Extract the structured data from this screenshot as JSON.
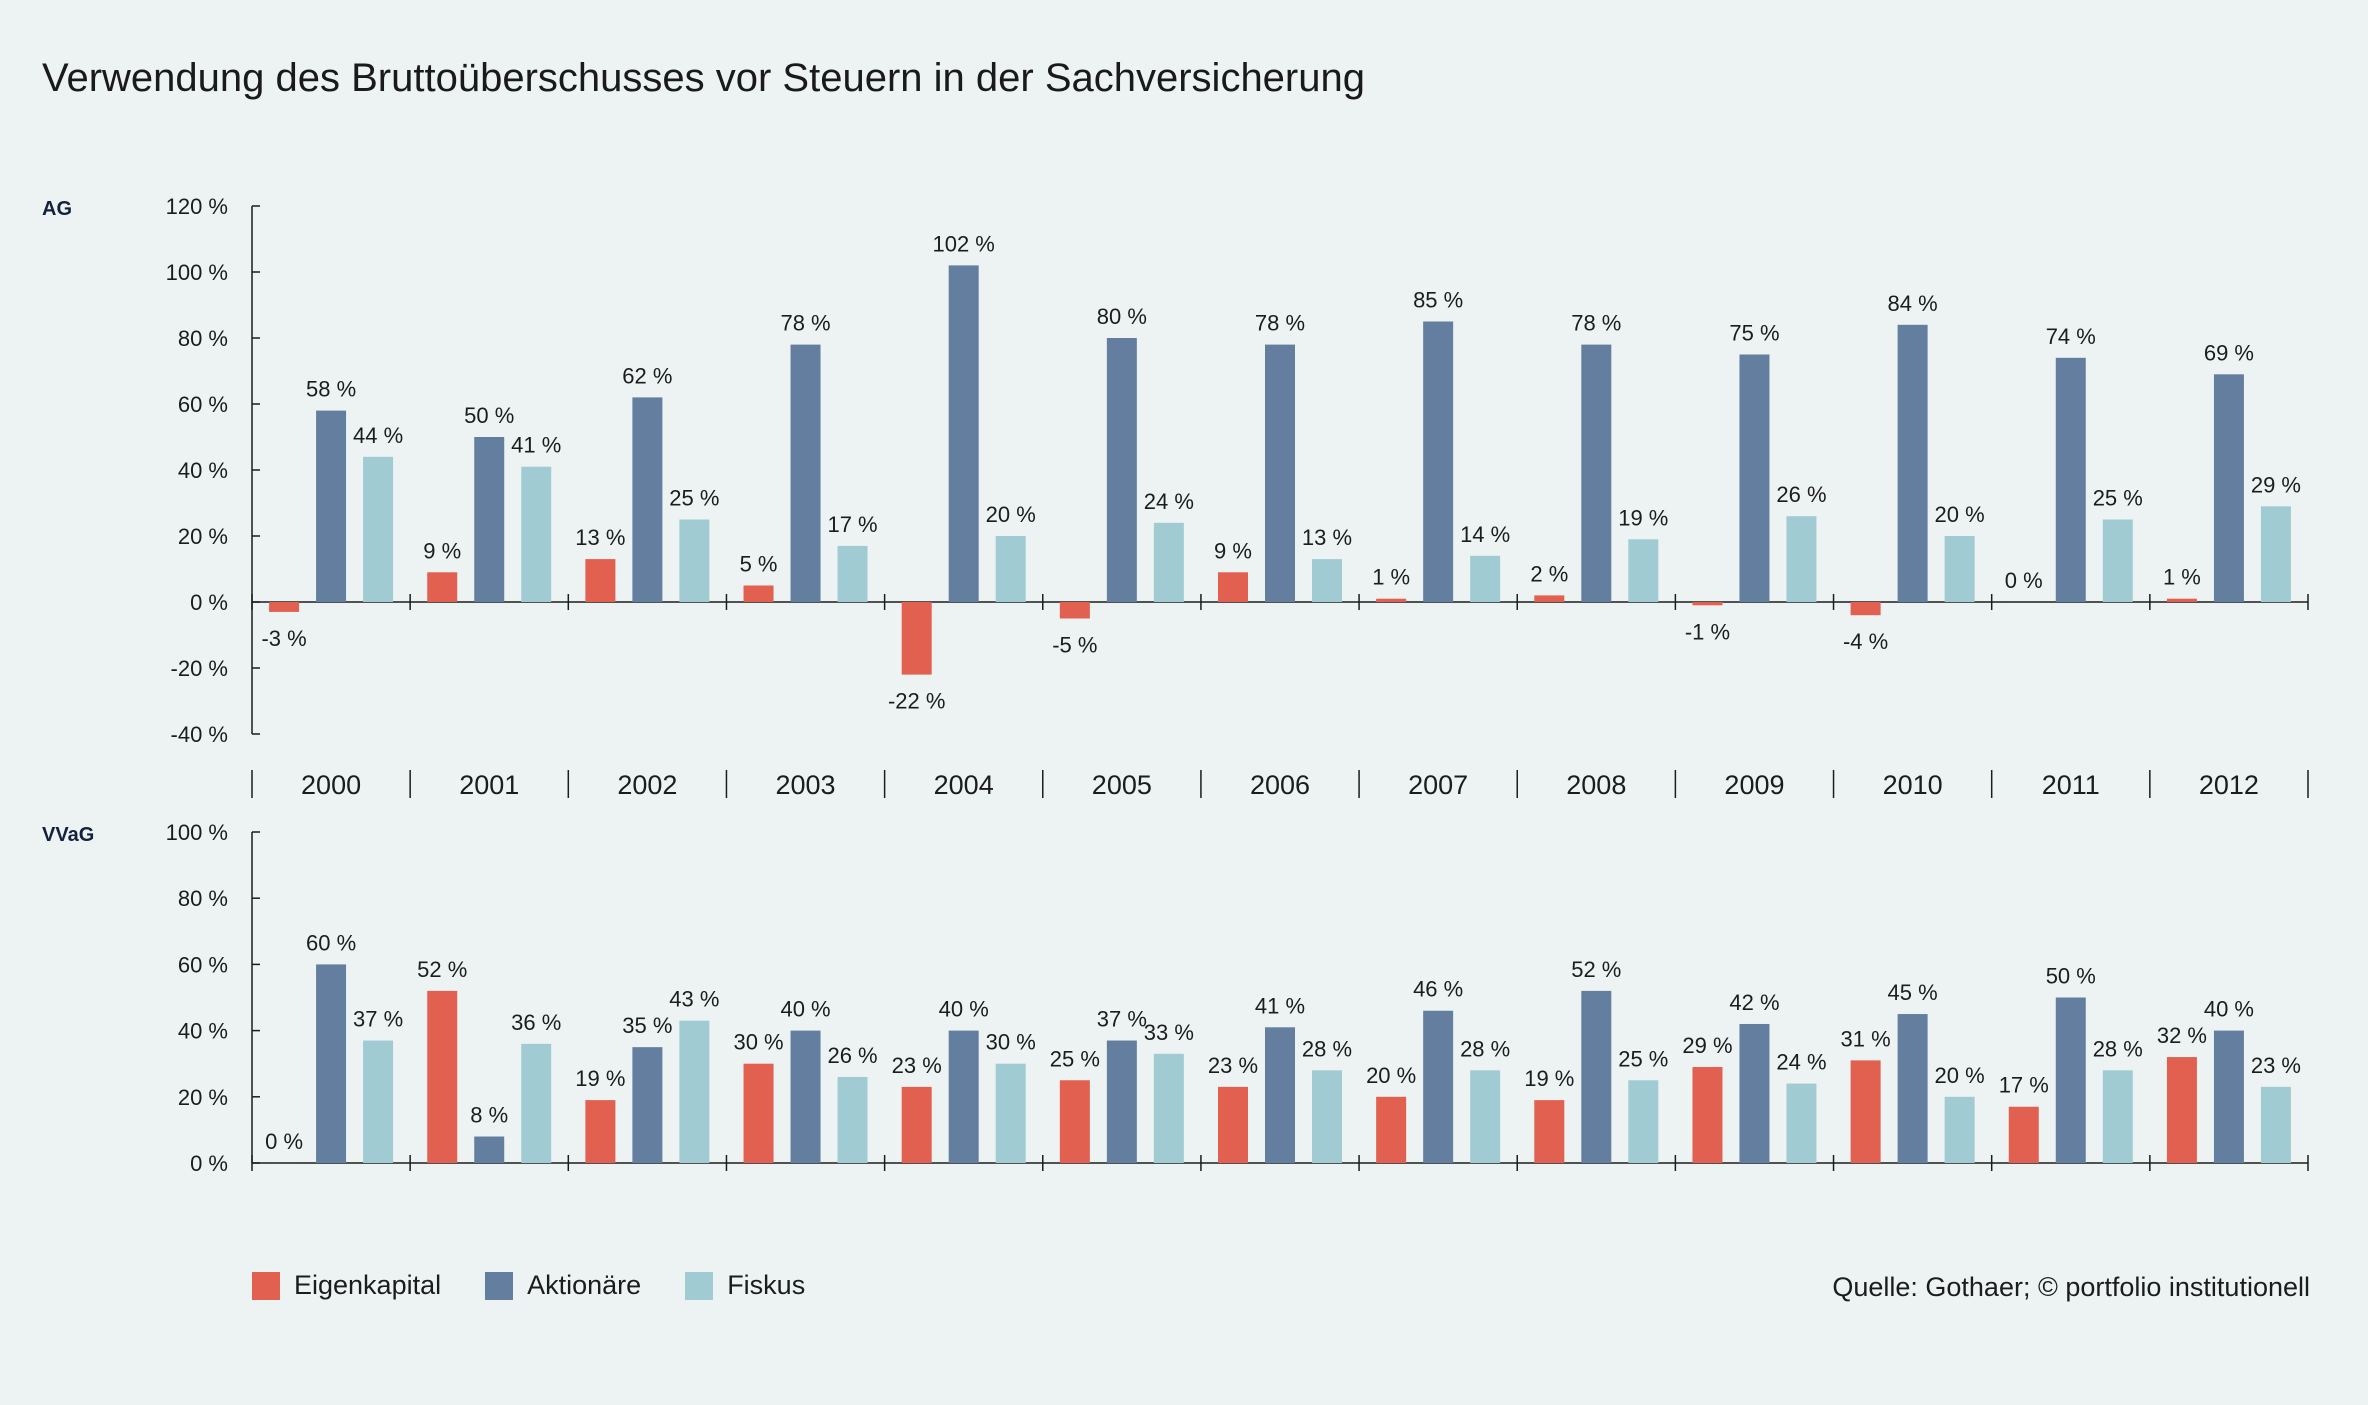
{
  "title": "Verwendung des Bruttoüberschusses vor Steuern in der Sachversicherung",
  "source": "Quelle: Gothaer; © portfolio institutionell",
  "legend": [
    {
      "name": "Eigenkapital",
      "color": "#e2604f"
    },
    {
      "name": "Aktionäre",
      "color": "#647e9f"
    },
    {
      "name": "Fiskus",
      "color": "#a1cbd2"
    }
  ],
  "chart_data": [
    {
      "type": "bar",
      "panel_label": "AG",
      "categories": [
        "2000",
        "2001",
        "2002",
        "2003",
        "2004",
        "2005",
        "2006",
        "2007",
        "2008",
        "2009",
        "2010",
        "2011",
        "2012"
      ],
      "ylim": [
        -40,
        120
      ],
      "yticks": [
        -40,
        -20,
        0,
        20,
        40,
        60,
        80,
        100,
        120
      ],
      "ytick_labels": [
        "-40 %",
        "-20 %",
        "0 %",
        "20 %",
        "40 %",
        "60 %",
        "80 %",
        "100 %",
        "120 %"
      ],
      "series": [
        {
          "name": "Eigenkapital",
          "values": [
            -3,
            9,
            13,
            5,
            -22,
            -5,
            9,
            1,
            2,
            -1,
            -4,
            0,
            1
          ],
          "labels": [
            "-3 %",
            "9 %",
            "13 %",
            "5 %",
            "-22 %",
            "-5 %",
            "9 %",
            "1 %",
            "2 %",
            "-1 %",
            "-4 %",
            "0 %",
            "1 %"
          ]
        },
        {
          "name": "Aktionäre",
          "values": [
            58,
            50,
            62,
            78,
            102,
            80,
            78,
            85,
            78,
            75,
            84,
            74,
            69
          ],
          "labels": [
            "58 %",
            "50 %",
            "62 %",
            "78 %",
            "102 %",
            "80 %",
            "78 %",
            "85 %",
            "78 %",
            "75 %",
            "84 %",
            "74 %",
            "69 %"
          ]
        },
        {
          "name": "Fiskus",
          "values": [
            44,
            41,
            25,
            17,
            20,
            24,
            13,
            14,
            19,
            26,
            20,
            25,
            29
          ],
          "labels": [
            "44 %",
            "41 %",
            "25 %",
            "17 %",
            "20 %",
            "24 %",
            "13 %",
            "14 %",
            "19 %",
            "26 %",
            "20 %",
            "25 %",
            "29 %"
          ]
        }
      ]
    },
    {
      "type": "bar",
      "panel_label": "VVaG",
      "categories": [
        "2000",
        "2001",
        "2002",
        "2003",
        "2004",
        "2005",
        "2006",
        "2007",
        "2008",
        "2009",
        "2010",
        "2011",
        "2012"
      ],
      "ylim": [
        0,
        100
      ],
      "yticks": [
        0,
        20,
        40,
        60,
        80,
        100
      ],
      "ytick_labels": [
        "0 %",
        "20 %",
        "40 %",
        "60 %",
        "80 %",
        "100 %"
      ],
      "series": [
        {
          "name": "Eigenkapital",
          "values": [
            0,
            52,
            19,
            30,
            23,
            25,
            23,
            20,
            19,
            29,
            31,
            17,
            32
          ],
          "labels": [
            "0 %",
            "52 %",
            "19 %",
            "30 %",
            "23 %",
            "25 %",
            "23 %",
            "20 %",
            "19 %",
            "29 %",
            "31 %",
            "17 %",
            "32 %"
          ]
        },
        {
          "name": "Aktionäre",
          "values": [
            60,
            8,
            35,
            40,
            40,
            37,
            41,
            46,
            52,
            42,
            45,
            50,
            40
          ],
          "labels": [
            "60 %",
            "8 %",
            "35 %",
            "40 %",
            "40 %",
            "37 %",
            "41 %",
            "46 %",
            "52 %",
            "42 %",
            "45 %",
            "50 %",
            "40 %"
          ]
        },
        {
          "name": "Fiskus",
          "values": [
            37,
            36,
            43,
            26,
            30,
            33,
            28,
            28,
            25,
            24,
            20,
            28,
            23
          ],
          "labels": [
            "37 %",
            "36 %",
            "43 %",
            "26 %",
            "30 %",
            "33 %",
            "28 %",
            "28 %",
            "25 %",
            "24 %",
            "20 %",
            "28 %",
            "23 %"
          ]
        }
      ]
    }
  ]
}
